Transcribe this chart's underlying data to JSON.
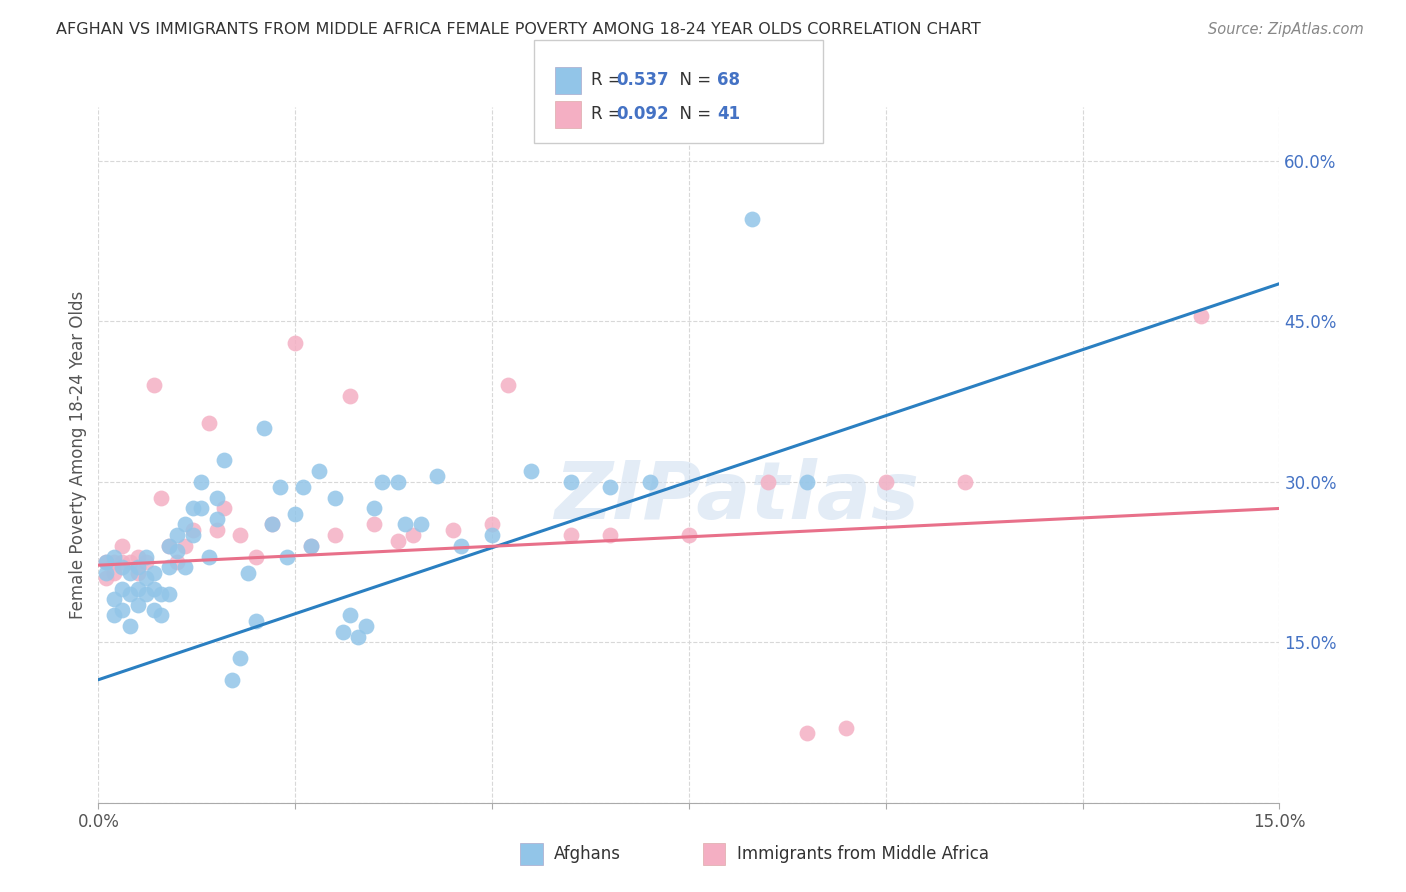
{
  "title": "AFGHAN VS IMMIGRANTS FROM MIDDLE AFRICA FEMALE POVERTY AMONG 18-24 YEAR OLDS CORRELATION CHART",
  "source": "Source: ZipAtlas.com",
  "ylabel": "Female Poverty Among 18-24 Year Olds",
  "blue_color": "#92c5e8",
  "pink_color": "#f4afc3",
  "blue_line_color": "#2a7fc1",
  "pink_line_color": "#e8708a",
  "tick_color": "#4472c4",
  "watermark": "ZIPatlas",
  "xlim": [
    0.0,
    0.15
  ],
  "ylim": [
    0.0,
    0.65
  ],
  "blue_line_x0": 0.0,
  "blue_line_y0": 0.115,
  "blue_line_x1": 0.15,
  "blue_line_y1": 0.485,
  "pink_line_x0": 0.0,
  "pink_line_y0": 0.222,
  "pink_line_x1": 0.15,
  "pink_line_y1": 0.275,
  "afghans_x": [
    0.001,
    0.001,
    0.002,
    0.002,
    0.002,
    0.003,
    0.003,
    0.003,
    0.004,
    0.004,
    0.004,
    0.005,
    0.005,
    0.005,
    0.006,
    0.006,
    0.006,
    0.007,
    0.007,
    0.007,
    0.008,
    0.008,
    0.009,
    0.009,
    0.009,
    0.01,
    0.01,
    0.011,
    0.011,
    0.012,
    0.012,
    0.013,
    0.013,
    0.014,
    0.015,
    0.015,
    0.016,
    0.017,
    0.018,
    0.019,
    0.02,
    0.021,
    0.022,
    0.023,
    0.024,
    0.025,
    0.026,
    0.027,
    0.028,
    0.03,
    0.031,
    0.032,
    0.033,
    0.034,
    0.035,
    0.036,
    0.038,
    0.039,
    0.041,
    0.043,
    0.046,
    0.05,
    0.055,
    0.06,
    0.065,
    0.07,
    0.083,
    0.09
  ],
  "afghans_y": [
    0.225,
    0.215,
    0.23,
    0.19,
    0.175,
    0.2,
    0.22,
    0.18,
    0.215,
    0.195,
    0.165,
    0.2,
    0.22,
    0.185,
    0.21,
    0.23,
    0.195,
    0.215,
    0.2,
    0.18,
    0.195,
    0.175,
    0.24,
    0.22,
    0.195,
    0.25,
    0.235,
    0.26,
    0.22,
    0.275,
    0.25,
    0.3,
    0.275,
    0.23,
    0.285,
    0.265,
    0.32,
    0.115,
    0.135,
    0.215,
    0.17,
    0.35,
    0.26,
    0.295,
    0.23,
    0.27,
    0.295,
    0.24,
    0.31,
    0.285,
    0.16,
    0.175,
    0.155,
    0.165,
    0.275,
    0.3,
    0.3,
    0.26,
    0.26,
    0.305,
    0.24,
    0.25,
    0.31,
    0.3,
    0.295,
    0.3,
    0.545,
    0.3
  ],
  "midafrica_x": [
    0.001,
    0.001,
    0.002,
    0.002,
    0.003,
    0.003,
    0.004,
    0.005,
    0.005,
    0.006,
    0.007,
    0.008,
    0.009,
    0.01,
    0.011,
    0.012,
    0.014,
    0.015,
    0.016,
    0.018,
    0.02,
    0.022,
    0.025,
    0.027,
    0.03,
    0.032,
    0.035,
    0.038,
    0.04,
    0.045,
    0.05,
    0.052,
    0.06,
    0.065,
    0.075,
    0.085,
    0.09,
    0.095,
    0.1,
    0.11,
    0.14
  ],
  "midafrica_y": [
    0.225,
    0.21,
    0.225,
    0.215,
    0.225,
    0.24,
    0.225,
    0.23,
    0.215,
    0.225,
    0.39,
    0.285,
    0.24,
    0.225,
    0.24,
    0.255,
    0.355,
    0.255,
    0.275,
    0.25,
    0.23,
    0.26,
    0.43,
    0.24,
    0.25,
    0.38,
    0.26,
    0.245,
    0.25,
    0.255,
    0.26,
    0.39,
    0.25,
    0.25,
    0.25,
    0.3,
    0.065,
    0.07,
    0.3,
    0.3,
    0.455
  ]
}
